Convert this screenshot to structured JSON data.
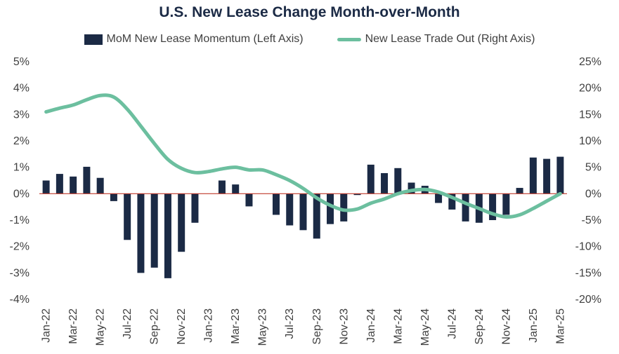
{
  "chart_data": {
    "type": "bar+line",
    "title": "U.S. New Lease Change Month-over-Month",
    "legend": [
      {
        "name": "MoM New Lease Momentum (Left Axis)",
        "kind": "bar",
        "color": "#1b2a45"
      },
      {
        "name": "New Lease Trade Out (Right Axis)",
        "kind": "line",
        "color": "#6cbf9f"
      }
    ],
    "zero_line_color": "#c0392b",
    "categories": [
      "Jan-22",
      "Feb-22",
      "Mar-22",
      "Apr-22",
      "May-22",
      "Jun-22",
      "Jul-22",
      "Aug-22",
      "Sep-22",
      "Oct-22",
      "Nov-22",
      "Dec-22",
      "Jan-23",
      "Feb-23",
      "Mar-23",
      "Apr-23",
      "May-23",
      "Jun-23",
      "Jul-23",
      "Aug-23",
      "Sep-23",
      "Oct-23",
      "Nov-23",
      "Dec-23",
      "Jan-24",
      "Feb-24",
      "Mar-24",
      "Apr-24",
      "May-24",
      "Jun-24",
      "Jul-24",
      "Aug-24",
      "Sep-24",
      "Oct-24",
      "Nov-24",
      "Dec-24",
      "Jan-25",
      "Feb-25",
      "Mar-25"
    ],
    "x_tick_labels": [
      "Jan-22",
      "Mar-22",
      "May-22",
      "Jul-22",
      "Sep-22",
      "Nov-22",
      "Jan-23",
      "Mar-23",
      "May-23",
      "Jul-23",
      "Sep-23",
      "Nov-23",
      "Jan-24",
      "Mar-24",
      "May-24",
      "Jul-24",
      "Sep-24",
      "Nov-24",
      "Jan-25",
      "Mar-25"
    ],
    "series": [
      {
        "name": "MoM New Lease Momentum (Left Axis)",
        "axis": "left",
        "unit": "%",
        "values": [
          0.5,
          0.75,
          0.65,
          1.02,
          0.6,
          -0.28,
          -1.75,
          -3.0,
          -2.8,
          -3.2,
          -2.2,
          -1.1,
          0.0,
          0.5,
          0.35,
          -0.48,
          0.0,
          -0.8,
          -1.2,
          -1.38,
          -1.7,
          -1.15,
          -1.05,
          -0.05,
          1.1,
          0.78,
          0.97,
          0.42,
          0.3,
          -0.35,
          -0.6,
          -1.05,
          -1.1,
          -1.0,
          -0.8,
          0.22,
          1.37,
          1.32,
          1.4
        ]
      },
      {
        "name": "New Lease Trade Out (Right Axis)",
        "axis": "right",
        "unit": "%",
        "values": [
          15.5,
          16.2,
          16.8,
          17.8,
          18.6,
          18.3,
          16.0,
          12.8,
          9.5,
          6.5,
          4.8,
          4.0,
          4.2,
          4.7,
          5.0,
          4.5,
          4.5,
          3.6,
          2.5,
          1.0,
          -0.8,
          -2.2,
          -3.1,
          -2.9,
          -1.8,
          -1.0,
          0.0,
          0.6,
          0.8,
          0.3,
          -0.7,
          -1.8,
          -2.8,
          -3.8,
          -4.4,
          -4.0,
          -2.8,
          -1.4,
          0.0
        ]
      }
    ],
    "left_axis": {
      "min": -4,
      "max": 5,
      "step": 1,
      "format": "%"
    },
    "right_axis": {
      "min": -20,
      "max": 25,
      "step": 5,
      "format": "%"
    },
    "grid": false
  }
}
